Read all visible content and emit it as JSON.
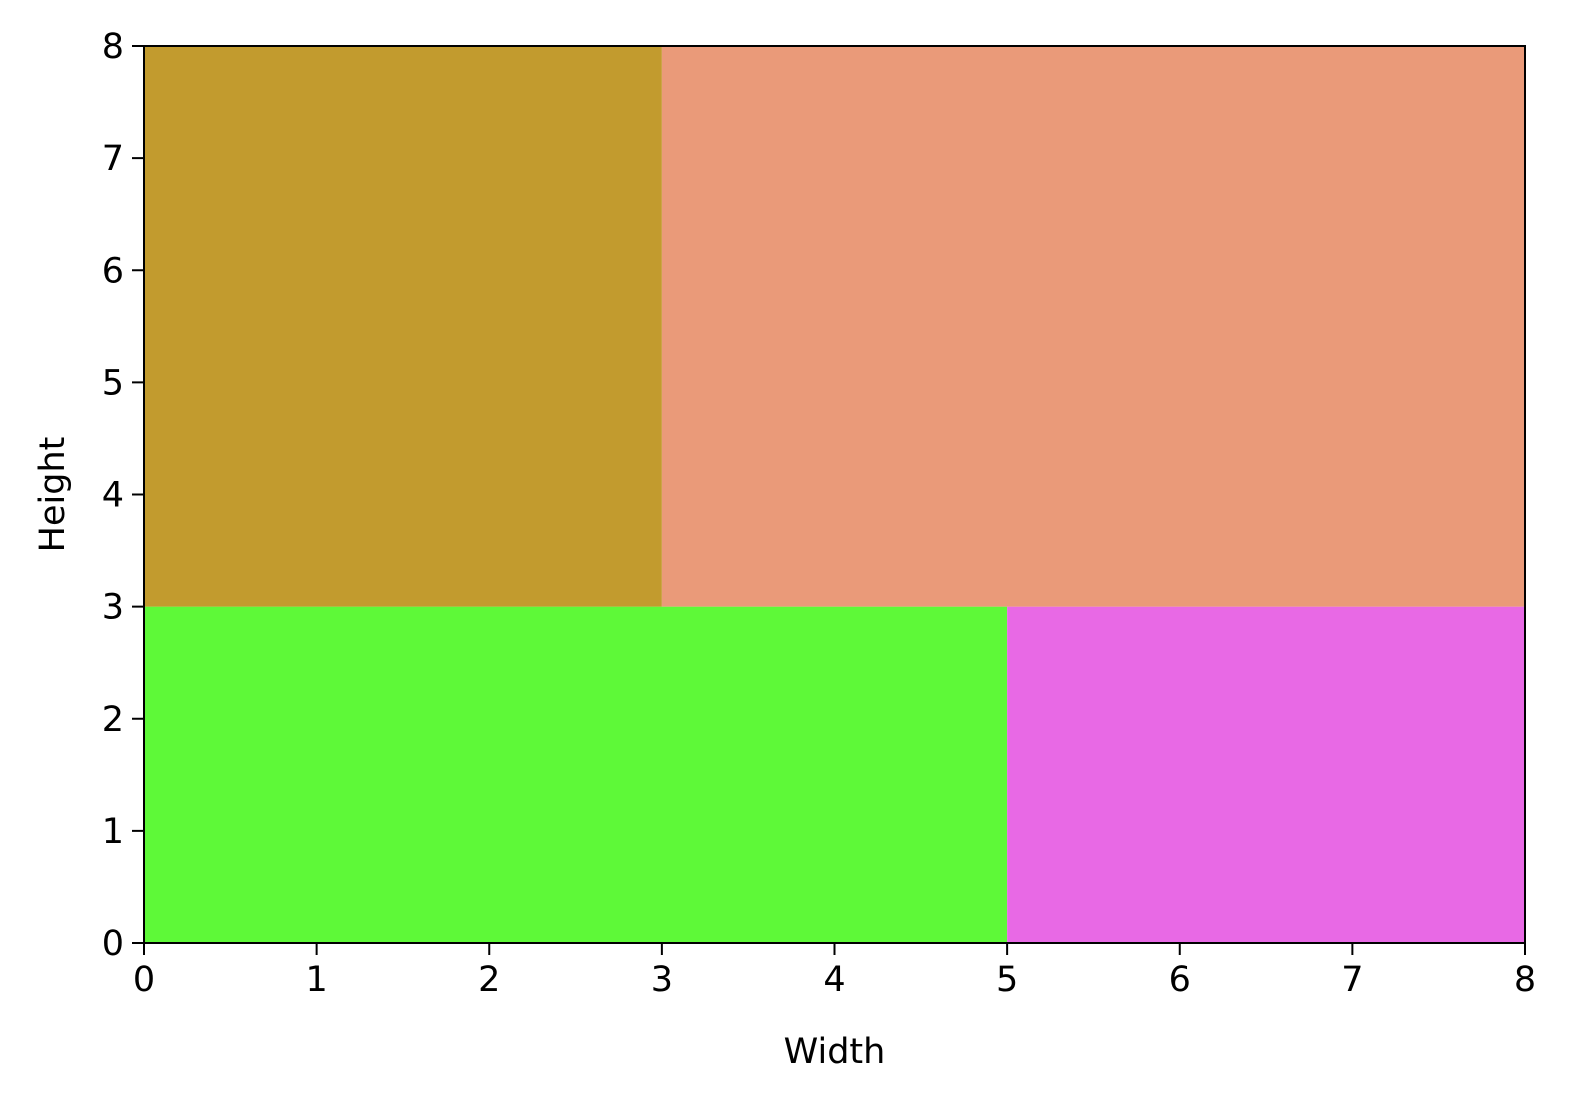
{
  "chart_data": {
    "type": "treemap",
    "xlabel": "Width",
    "ylabel": "Height",
    "xlim": [
      0,
      8
    ],
    "ylim": [
      0,
      8
    ],
    "xticks": [
      "0",
      "1",
      "2",
      "3",
      "4",
      "5",
      "6",
      "7",
      "8"
    ],
    "yticks": [
      "0",
      "1",
      "2",
      "3",
      "4",
      "5",
      "6",
      "7",
      "8"
    ],
    "grid": false,
    "rectangles": [
      {
        "x": 0,
        "y": 0,
        "width": 5,
        "height": 3,
        "color": "#5ef938"
      },
      {
        "x": 5,
        "y": 0,
        "width": 3,
        "height": 3,
        "color": "#e869e5"
      },
      {
        "x": 0,
        "y": 3,
        "width": 3,
        "height": 5,
        "color": "#c29b2e"
      },
      {
        "x": 3,
        "y": 3,
        "width": 5,
        "height": 5,
        "color": "#ea9a79"
      }
    ]
  }
}
